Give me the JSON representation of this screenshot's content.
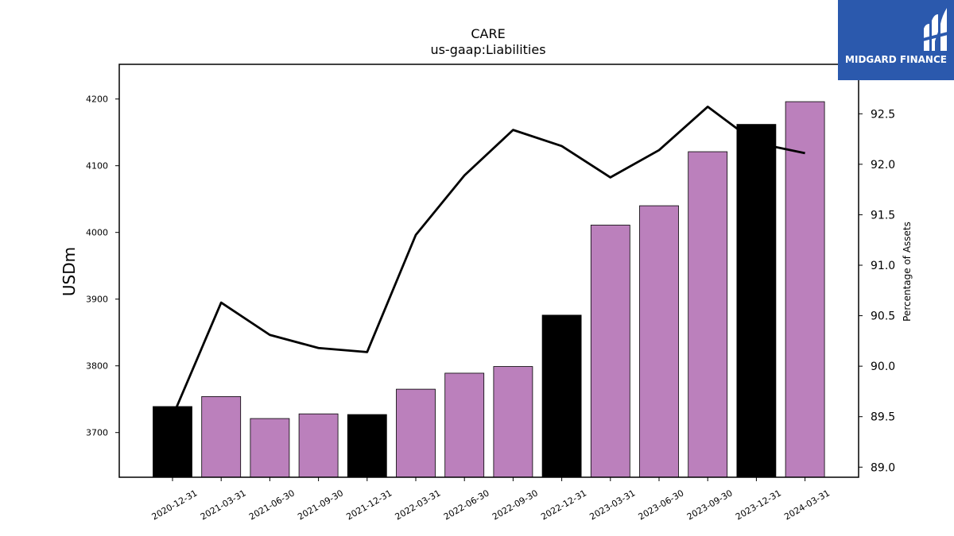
{
  "brand": {
    "name": "MIDGARD FINANCE",
    "color": "#2b59ad"
  },
  "chart_data": {
    "type": "bar",
    "title": "CARE",
    "subtitle": "us-gaap:Liabilities",
    "ylabel": "USDm",
    "y2label": "Percentage of Assets",
    "categories": [
      "2020-12-31",
      "2021-03-31",
      "2021-06-30",
      "2021-09-30",
      "2021-12-31",
      "2022-03-31",
      "2022-06-30",
      "2022-09-30",
      "2022-12-31",
      "2023-03-31",
      "2023-06-30",
      "2023-09-30",
      "2023-12-31",
      "2024-03-31"
    ],
    "series": [
      {
        "type": "bar",
        "axis": "left",
        "values": [
          3739,
          3754,
          3721,
          3728,
          3727,
          3765,
          3789,
          3799,
          3876,
          4011,
          4040,
          4121,
          4162,
          4196
        ],
        "colors": [
          "#000000",
          "#bb80bc",
          "#bb80bc",
          "#bb80bc",
          "#000000",
          "#bb80bc",
          "#bb80bc",
          "#bb80bc",
          "#000000",
          "#bb80bc",
          "#bb80bc",
          "#bb80bc",
          "#000000",
          "#bb80bc"
        ]
      },
      {
        "type": "line",
        "axis": "right",
        "color": "#000000",
        "values": [
          89.5,
          90.63,
          90.31,
          90.18,
          90.14,
          91.3,
          91.89,
          92.34,
          92.18,
          91.87,
          92.14,
          92.57,
          92.21,
          92.11
        ]
      }
    ],
    "ylim": [
      3633,
      4252
    ],
    "y2lim": [
      88.9,
      92.99
    ],
    "yticks": [
      3700,
      3800,
      3900,
      4000,
      4100,
      4200
    ],
    "y2ticks": [
      "89.0",
      "89.5",
      "90.0",
      "90.5",
      "91.0",
      "91.5",
      "92.0",
      "92.5"
    ],
    "grid": false,
    "legend": "none"
  }
}
